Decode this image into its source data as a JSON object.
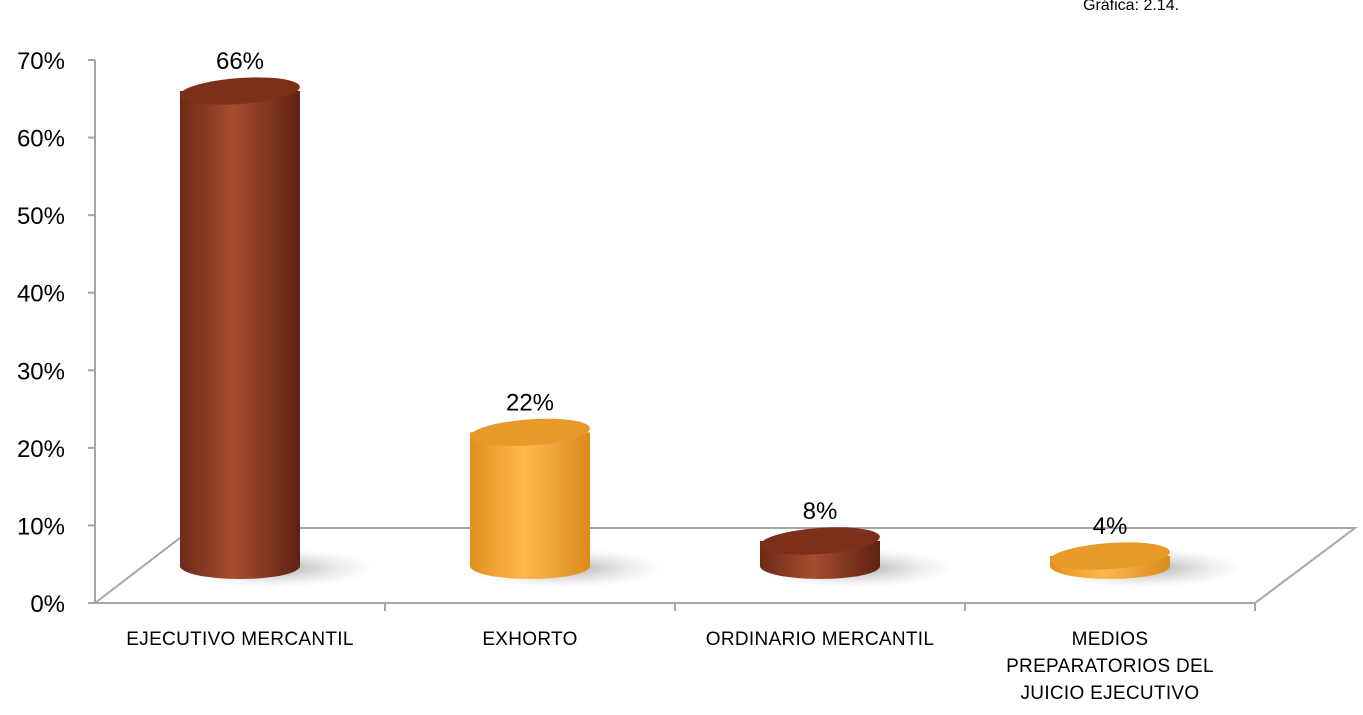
{
  "chart_data": {
    "type": "bar",
    "style": "3d-cylinder",
    "corner_note": "Gráfica: 2.14.",
    "categories": [
      "EJECUTIVO MERCANTIL",
      "EXHORTO",
      "ORDINARIO MERCANTIL",
      "MEDIOS PREPARATORIOS DEL JUICIO EJECUTIVO"
    ],
    "category_lines": [
      [
        "EJECUTIVO MERCANTIL"
      ],
      [
        "EXHORTO"
      ],
      [
        "ORDINARIO MERCANTIL"
      ],
      [
        "MEDIOS",
        "PREPARATORIOS DEL",
        "JUICIO EJECUTIVO"
      ]
    ],
    "values": [
      66,
      22,
      8,
      4
    ],
    "data_labels": [
      "66%",
      "22%",
      "8%",
      "4%"
    ],
    "ylim": [
      0,
      70
    ],
    "yticks": [
      0,
      10,
      20,
      30,
      40,
      50,
      60,
      70
    ],
    "ytick_labels": [
      "0%",
      "10%",
      "20%",
      "30%",
      "40%",
      "50%",
      "60%",
      "70%"
    ],
    "colors": [
      "#9a4427",
      "#f7ae3d",
      "#9a4427",
      "#f7ae3d"
    ],
    "grid": false,
    "legend": "none"
  }
}
